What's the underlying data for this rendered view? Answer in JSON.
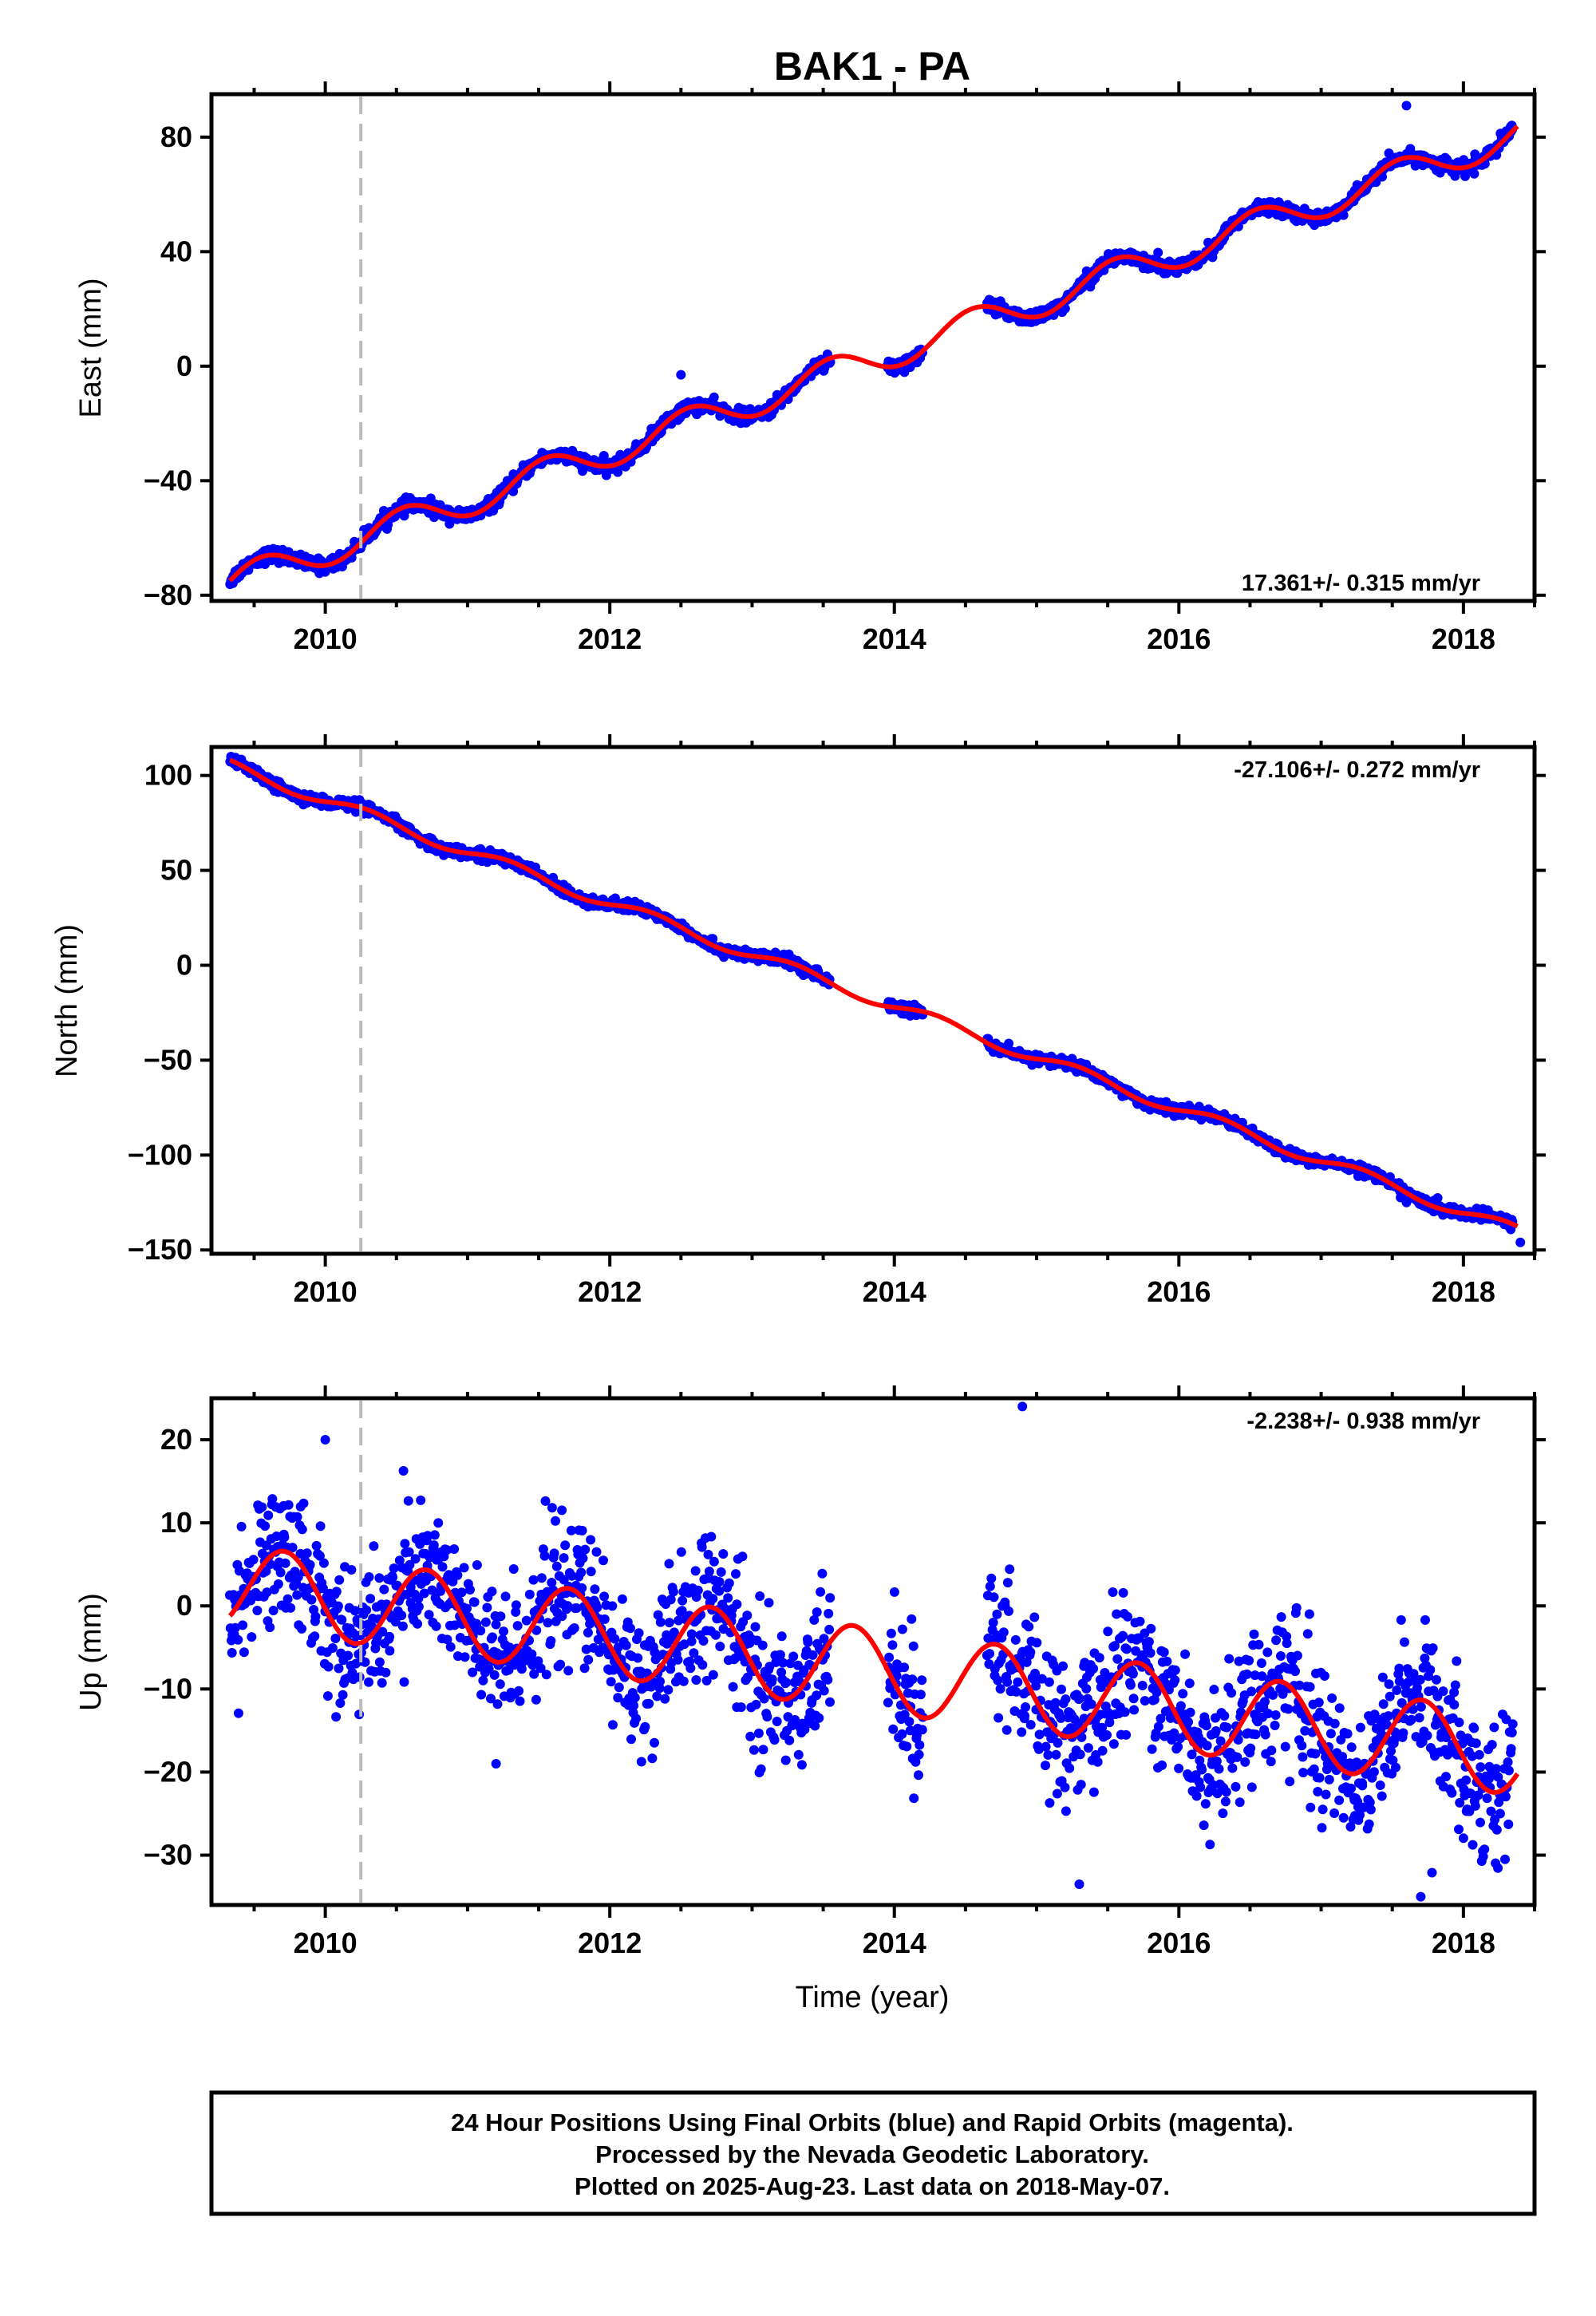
{
  "chart_data": {
    "title": "BAK1 - PA",
    "type": "scatter",
    "xlabel": "Time (year)",
    "xlim": [
      2009.2,
      2018.5
    ],
    "x_ticks": [
      "2010",
      "2012",
      "2014",
      "2016",
      "2018"
    ],
    "marker_line_year": 2010.25,
    "colors": {
      "points": "#0000ff",
      "fit": "#ff0000",
      "marker_line": "#bbbbbb"
    },
    "panels": [
      {
        "ylabel": "East (mm)",
        "ylim": [
          -82,
          95
        ],
        "y_ticks": [
          "80",
          "40",
          "0",
          "−40",
          "−80"
        ],
        "y_tick_values": [
          80,
          40,
          0,
          -40,
          -80
        ],
        "rate_text": "17.361+/- 0.315 mm/yr",
        "rate_position": "bottom-right",
        "model": {
          "trend": [
            -76.5,
            17.361
          ],
          "annual": [
            5.5,
            0.0
          ],
          "scatter": 1.2,
          "outliers": [
            [
              2017.6,
              91
            ],
            [
              2012.5,
              -3
            ]
          ]
        }
      },
      {
        "ylabel": "North (mm)",
        "ylim": [
          -152,
          115
        ],
        "y_ticks": [
          "100",
          "50",
          "0",
          "−50",
          "−100",
          "−150"
        ],
        "y_tick_values": [
          100,
          50,
          0,
          -50,
          -100,
          -150
        ],
        "rate_text": "-27.106+/- 0.272 mm/yr",
        "rate_position": "top-right",
        "model": {
          "trend": [
            106,
            -27.106
          ],
          "annual": [
            3.0,
            1.6
          ],
          "scatter": 1.4,
          "outliers": [
            [
              2017.6,
              -125
            ],
            [
              2018.4,
              -146
            ]
          ]
        }
      },
      {
        "ylabel": "Up (mm)",
        "ylim": [
          -36,
          25
        ],
        "y_ticks": [
          "20",
          "10",
          "0",
          "−10",
          "−20",
          "−30"
        ],
        "y_tick_values": [
          20,
          10,
          0,
          -10,
          -20,
          -30
        ],
        "rate_text": "-2.238+/- 0.938 mm/yr",
        "rate_position": "top-right",
        "model": {
          "trend": [
            2.5,
            -2.238
          ],
          "annual": [
            5.0,
            -1.0
          ],
          "scatter": 4.2,
          "outliers": [
            [
              2015.3,
              -33.5
            ],
            [
              2017.7,
              -35
            ],
            [
              2014.9,
              24
            ],
            [
              2011.2,
              -19
            ],
            [
              2010.0,
              20
            ]
          ]
        }
      }
    ],
    "data_gaps": [
      [
        2013.55,
        2013.95
      ],
      [
        2014.2,
        2014.65
      ]
    ],
    "notes": [
      "24 Hour Positions Using Final Orbits (blue) and Rapid Orbits (magenta).",
      "Processed by the Nevada Geodetic Laboratory.",
      "Plotted on 2025-Aug-23. Last data on 2018-May-07."
    ]
  }
}
